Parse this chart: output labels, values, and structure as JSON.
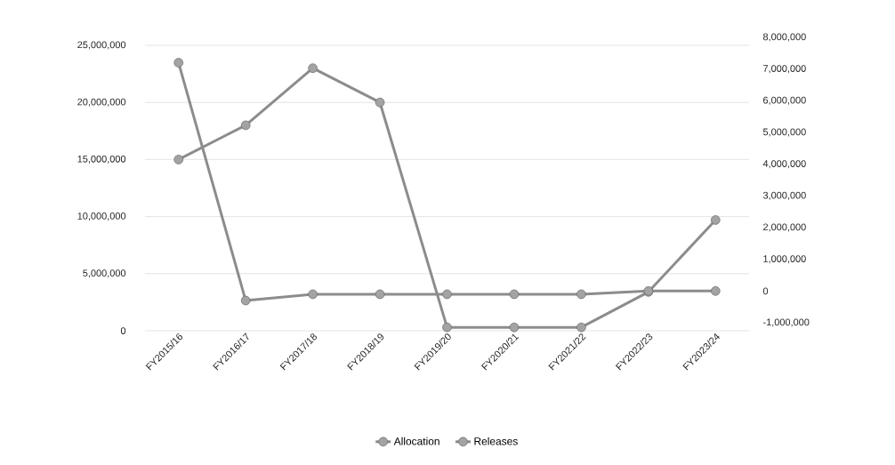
{
  "chart_data": {
    "type": "line",
    "categories": [
      "FY2015/16",
      "FY2016/17",
      "FY2017/18",
      "FY2018/19",
      "FY2019/20",
      "FY2020/21",
      "FY2021/22",
      "FY2022/23",
      "FY2023/24"
    ],
    "series": [
      {
        "name": "Allocation",
        "color": "#8c8c8c",
        "values": [
          15000000,
          18000000,
          23000000,
          20000000,
          300000,
          300000,
          300000,
          3400000,
          9700000
        ]
      },
      {
        "name": "Releases",
        "color": "#8c8c8c",
        "axis": "y2",
        "values": [
          7200000,
          -300000,
          -100000,
          -100000,
          -100000,
          -100000,
          -100000,
          0,
          0
        ]
      }
    ],
    "ylim": [
      0,
      25000000
    ],
    "yticks": [
      {
        "value": 0,
        "label": "0"
      },
      {
        "value": 5000000,
        "label": "5,000,000"
      },
      {
        "value": 10000000,
        "label": "10,000,000"
      },
      {
        "value": 15000000,
        "label": "15,000,000"
      },
      {
        "value": 20000000,
        "label": "20,000,000"
      },
      {
        "value": 25000000,
        "label": "25,000,000"
      }
    ],
    "y2lim": [
      -1000000,
      8000000
    ],
    "y2ticks": [
      {
        "value": -1000000,
        "label": "-1,000,000"
      },
      {
        "value": 0,
        "label": "0"
      },
      {
        "value": 1000000,
        "label": "1,000,000"
      },
      {
        "value": 2000000,
        "label": "2,000,000"
      },
      {
        "value": 3000000,
        "label": "3,000,000"
      },
      {
        "value": 4000000,
        "label": "4,000,000"
      },
      {
        "value": 5000000,
        "label": "5,000,000"
      },
      {
        "value": 6000000,
        "label": "6,000,000"
      },
      {
        "value": 7000000,
        "label": "7,000,000"
      },
      {
        "value": 8000000,
        "label": "8,000,000"
      }
    ],
    "grid": "y",
    "legend": "bottom",
    "marker": "circle",
    "line_style": "solid"
  }
}
